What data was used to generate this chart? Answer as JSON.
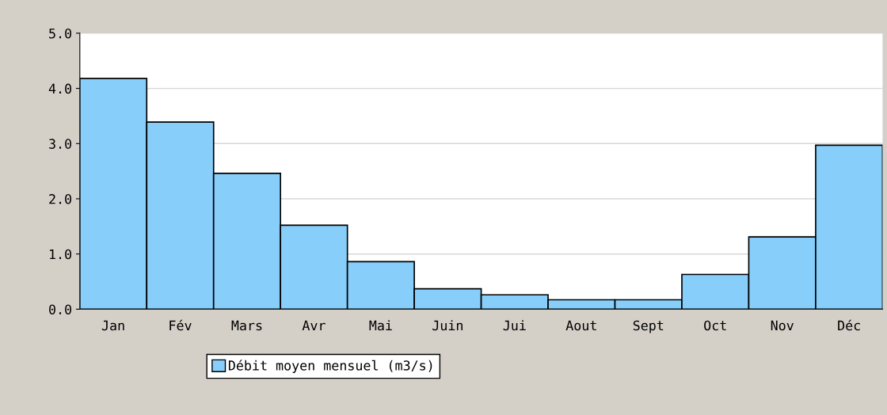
{
  "chart_data": {
    "type": "bar",
    "categories": [
      "Jan",
      "Fév",
      "Mars",
      "Avr",
      "Mai",
      "Juin",
      "Jui",
      "Aout",
      "Sept",
      "Oct",
      "Nov",
      "Déc"
    ],
    "series": [
      {
        "name": "Débit moyen mensuel (m3/s)",
        "color": "#87cefa",
        "values": [
          4.18,
          3.39,
          2.46,
          1.52,
          0.86,
          0.37,
          0.26,
          0.17,
          0.17,
          0.63,
          1.31,
          2.97
        ]
      }
    ],
    "ylim": [
      0,
      5
    ],
    "yticks": [
      {
        "value": 0,
        "label": "0.0"
      },
      {
        "value": 1,
        "label": "1.0"
      },
      {
        "value": 2,
        "label": "2.0"
      },
      {
        "value": 3,
        "label": "3.0"
      },
      {
        "value": 4,
        "label": "4.0"
      },
      {
        "value": 5,
        "label": "5.0"
      }
    ],
    "grid": "y",
    "legend": "bottom left"
  }
}
